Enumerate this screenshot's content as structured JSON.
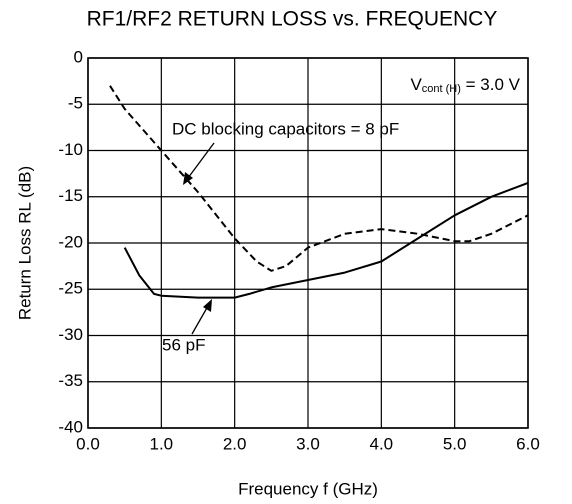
{
  "chart_data": {
    "type": "line",
    "title": "RF1/RF2  RETURN LOSS vs. FREQUENCY",
    "x_label": "Frequency  f (GHz)",
    "y_label": "Return Loss  RL (dB)",
    "annotation": {
      "symbol": "V",
      "subscript": "cont (H)",
      "text": " = 3.0 V"
    },
    "xlim": [
      0,
      6
    ],
    "ylim": [
      -40,
      0
    ],
    "xticks": [
      {
        "value": 0,
        "label": "0.0"
      },
      {
        "value": 1,
        "label": "1.0"
      },
      {
        "value": 2,
        "label": "2.0"
      },
      {
        "value": 3,
        "label": "3.0"
      },
      {
        "value": 4,
        "label": "4.0"
      },
      {
        "value": 5,
        "label": "5.0"
      },
      {
        "value": 6,
        "label": "6.0"
      }
    ],
    "yticks": [
      0,
      -5,
      -10,
      -15,
      -20,
      -25,
      -30,
      -35,
      -40
    ],
    "grid": true,
    "series": [
      {
        "name": "DC blocking capacitors = 8 pF",
        "color": "#000000",
        "dash": true,
        "x": [
          0.3,
          0.5,
          1.0,
          1.5,
          2.0,
          2.3,
          2.5,
          2.7,
          3.0,
          3.5,
          4.0,
          4.5,
          5.0,
          5.2,
          5.5,
          6.0
        ],
        "values": [
          -3,
          -5.5,
          -10,
          -14.5,
          -19.5,
          -22,
          -23,
          -22.5,
          -20.5,
          -19,
          -18.5,
          -19,
          -19.8,
          -19.8,
          -19,
          -17
        ]
      },
      {
        "name": "56 pF",
        "color": "#000000",
        "dash": false,
        "x": [
          0.5,
          0.7,
          0.9,
          1.0,
          1.5,
          2.0,
          2.2,
          2.5,
          3.0,
          3.5,
          4.0,
          4.5,
          5.0,
          5.5,
          6.0
        ],
        "values": [
          -20.5,
          -23.5,
          -25.5,
          -25.7,
          -25.9,
          -25.9,
          -25.5,
          -24.8,
          -24,
          -23.2,
          -22,
          -19.5,
          -17,
          -15,
          -13.5
        ]
      }
    ]
  }
}
